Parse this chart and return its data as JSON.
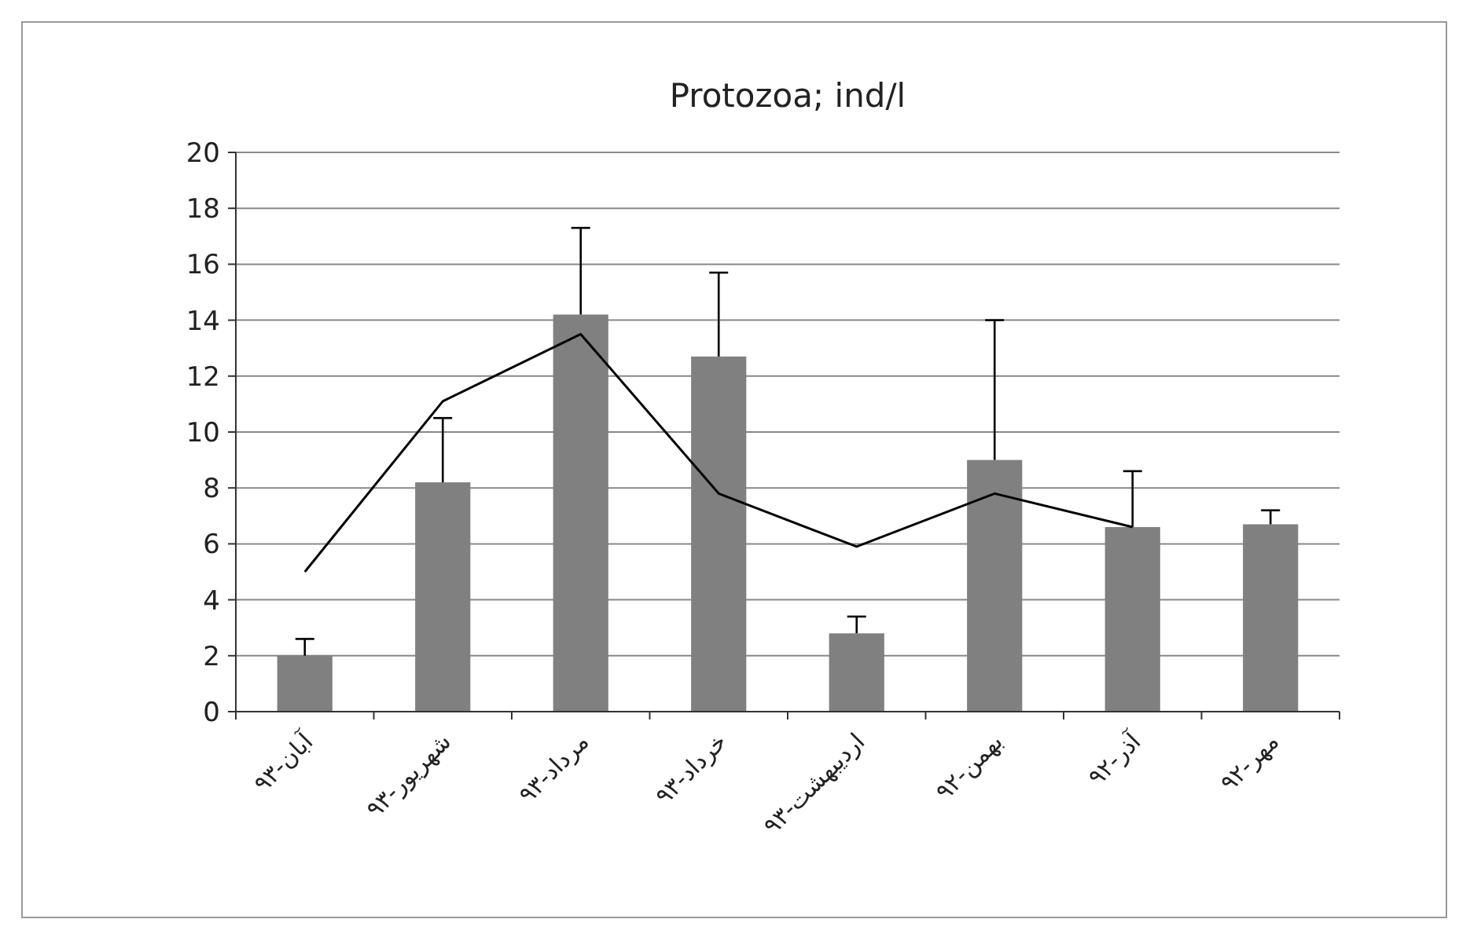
{
  "chart_data": {
    "type": "bar",
    "title": "Protozoa; ind/l",
    "categories": [
      "آبان-۹۳",
      "شهریور-۹۳",
      "مرداد-۹۳",
      "خرداد-۹۳",
      "اردیبهشت-۹۳",
      "بهمن-۹۲",
      "آذر-۹۲",
      "مهر-۹۲"
    ],
    "series": [
      {
        "color": "#808080",
        "values": [
          2.0,
          8.2,
          14.2,
          12.7,
          2.8,
          9.0,
          6.6,
          6.7
        ],
        "errors": [
          [
            2.0,
            2.6
          ],
          [
            8.2,
            10.5
          ],
          [
            14.2,
            17.3
          ],
          [
            12.7,
            15.7
          ],
          [
            2.8,
            3.4
          ],
          [
            9.0,
            14.0
          ],
          [
            6.6,
            8.6
          ],
          [
            6.7,
            7.2
          ]
        ]
      },
      {
        "type": "line",
        "color": "#000000",
        "values": [
          5.0,
          11.1,
          13.5,
          7.8,
          5.9,
          7.8,
          6.6,
          null
        ]
      }
    ],
    "ylim": [
      0,
      20
    ],
    "yticks": [
      0,
      2,
      4,
      6,
      8,
      10,
      12,
      14,
      16,
      18,
      20
    ],
    "grid": "y",
    "marker": "none",
    "line_style": "solid"
  }
}
